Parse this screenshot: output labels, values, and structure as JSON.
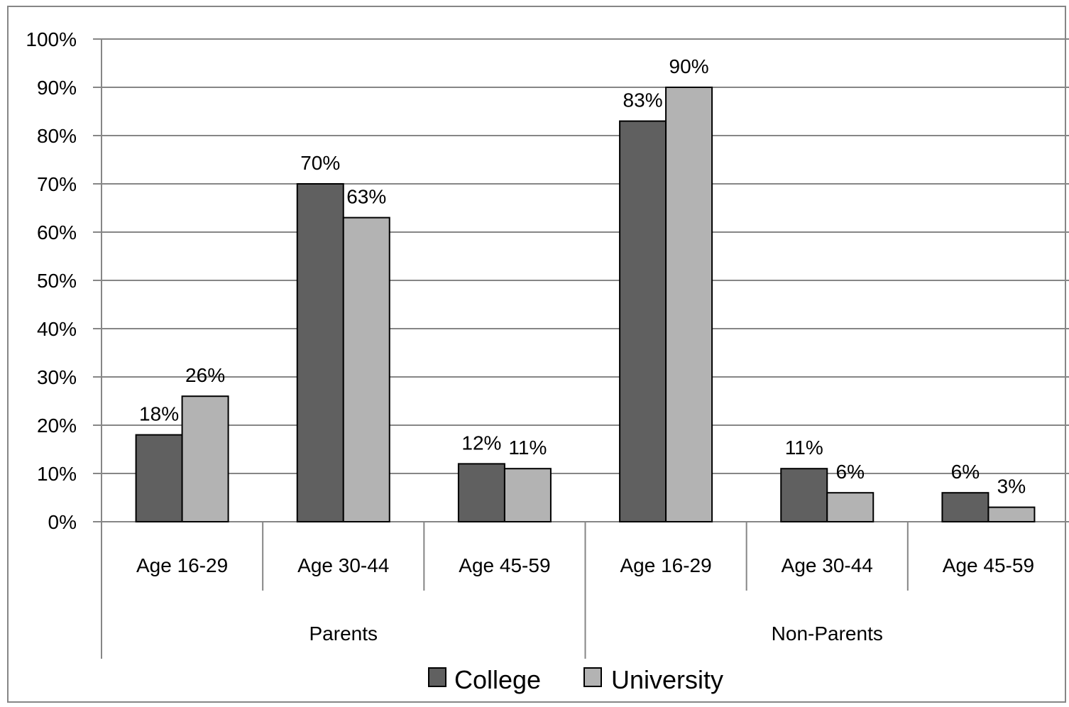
{
  "chart_data": {
    "type": "bar",
    "title": "",
    "xlabel": "",
    "ylabel": "",
    "ylim": [
      0,
      100
    ],
    "yticks": [
      0,
      10,
      20,
      30,
      40,
      50,
      60,
      70,
      80,
      90,
      100
    ],
    "ytick_labels": [
      "0%",
      "10%",
      "20%",
      "30%",
      "40%",
      "50%",
      "60%",
      "70%",
      "80%",
      "90%",
      "100%"
    ],
    "groups": [
      {
        "label": "Parents",
        "categories": [
          "Age 16-29",
          "Age 30-44",
          "Age 45-59"
        ]
      },
      {
        "label": "Non-Parents",
        "categories": [
          "Age 16-29",
          "Age 30-44",
          "Age 45-59"
        ]
      }
    ],
    "categories": [
      "Age 16-29",
      "Age 30-44",
      "Age 45-59",
      "Age 16-29",
      "Age 30-44",
      "Age 45-59"
    ],
    "series": [
      {
        "name": "College",
        "color": "#606060",
        "values": [
          18,
          70,
          12,
          83,
          11,
          6
        ],
        "labels": [
          "18%",
          "70%",
          "12%",
          "83%",
          "11%",
          "6%"
        ]
      },
      {
        "name": "University",
        "color": "#b3b3b3",
        "values": [
          26,
          63,
          11,
          90,
          6,
          3
        ],
        "labels": [
          "26%",
          "63%",
          "11%",
          "90%",
          "6%",
          "3%"
        ]
      }
    ],
    "grid": true,
    "legend_position": "bottom-center"
  }
}
